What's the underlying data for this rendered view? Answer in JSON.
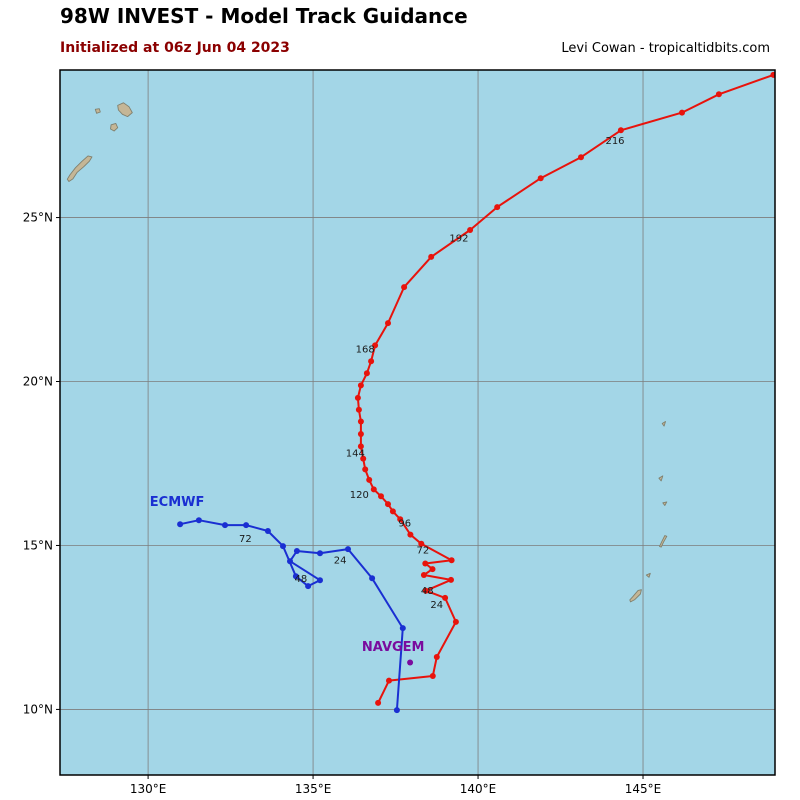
{
  "header": {
    "title": "98W INVEST - Model Track Guidance",
    "subtitle": "Initialized at 06z Jun 04 2023",
    "credit": "Levi Cowan - tropicaltidbits.com"
  },
  "chart_data": {
    "type": "scatter",
    "subtype": "tropical-model-track-map",
    "projection": {
      "lon_min": 127.33,
      "lon_max": 149.0,
      "lat_min": 8.0,
      "lat_max": 29.5
    },
    "x_ticks": [
      {
        "label": "130°E",
        "lon": 130
      },
      {
        "label": "135°E",
        "lon": 135
      },
      {
        "label": "140°E",
        "lon": 140
      },
      {
        "label": "145°E",
        "lon": 145
      }
    ],
    "y_ticks": [
      {
        "label": "25°N",
        "lat": 25
      },
      {
        "label": "20°N",
        "lat": 20
      },
      {
        "label": "15°N",
        "lat": 15
      },
      {
        "label": "10°N",
        "lat": 10
      }
    ],
    "colors": {
      "ocean": "#a3d6e7",
      "land": "#c5b696",
      "land_border": "#80806e",
      "grid": "#7d7d7d",
      "border": "#000000",
      "red_track": "#e8130c",
      "ecmwf": "#1a2fd2",
      "navgem": "#7a0b9e",
      "hour_label": "#1a1a1a",
      "subtitle": "#8b0000"
    },
    "tracks": [
      {
        "id": "model-red",
        "color_key": "red_track",
        "points": [
          [
            136.97,
            10.2
          ],
          [
            137.3,
            10.88
          ],
          [
            138.63,
            11.02
          ],
          [
            138.75,
            11.6
          ],
          [
            139.33,
            12.67
          ],
          [
            139.0,
            13.4
          ],
          [
            138.42,
            13.62
          ],
          [
            139.18,
            13.95
          ],
          [
            138.36,
            14.1
          ],
          [
            138.62,
            14.28
          ],
          [
            138.4,
            14.45
          ],
          [
            139.2,
            14.55
          ],
          [
            138.28,
            15.05
          ],
          [
            137.95,
            15.33
          ],
          [
            137.64,
            15.8
          ],
          [
            137.42,
            16.04
          ],
          [
            137.27,
            16.26
          ],
          [
            137.06,
            16.5
          ],
          [
            136.84,
            16.71
          ],
          [
            136.7,
            17.0
          ],
          [
            136.58,
            17.32
          ],
          [
            136.52,
            17.65
          ],
          [
            136.45,
            18.02
          ],
          [
            136.45,
            18.4
          ],
          [
            136.45,
            18.78
          ],
          [
            136.39,
            19.14
          ],
          [
            136.36,
            19.5
          ],
          [
            136.45,
            19.88
          ],
          [
            136.63,
            20.25
          ],
          [
            136.76,
            20.62
          ],
          [
            136.88,
            21.1
          ],
          [
            137.27,
            21.78
          ],
          [
            137.76,
            22.88
          ],
          [
            138.58,
            23.8
          ],
          [
            139.76,
            24.62
          ],
          [
            140.58,
            25.32
          ],
          [
            141.9,
            26.2
          ],
          [
            143.12,
            26.84
          ],
          [
            144.33,
            27.66
          ],
          [
            146.18,
            28.2
          ],
          [
            147.3,
            28.76
          ],
          [
            148.95,
            29.35
          ]
        ],
        "hour_labels": [
          {
            "text": "24",
            "lon": 138.75,
            "lat": 13.1
          },
          {
            "text": "48",
            "lon": 138.46,
            "lat": 13.52
          },
          {
            "text": "72",
            "lon": 138.33,
            "lat": 14.75
          },
          {
            "text": "96",
            "lon": 137.78,
            "lat": 15.58
          },
          {
            "text": "120",
            "lon": 136.4,
            "lat": 16.45
          },
          {
            "text": "144",
            "lon": 136.28,
            "lat": 17.72
          },
          {
            "text": "168",
            "lon": 136.58,
            "lat": 20.88
          },
          {
            "text": "192",
            "lon": 139.42,
            "lat": 24.27
          },
          {
            "text": "216",
            "lon": 144.15,
            "lat": 27.24
          }
        ]
      },
      {
        "id": "ecmwf",
        "label": "ECMWF",
        "label_pos": [
          130.88,
          16.2
        ],
        "color_key": "ecmwf",
        "points": [
          [
            137.54,
            9.98
          ],
          [
            137.72,
            12.48
          ],
          [
            136.79,
            14.0
          ],
          [
            136.06,
            14.89
          ],
          [
            135.21,
            14.76
          ],
          [
            134.51,
            14.83
          ],
          [
            134.3,
            14.52
          ],
          [
            135.21,
            13.94
          ],
          [
            134.85,
            13.76
          ],
          [
            134.48,
            14.06
          ],
          [
            134.09,
            14.98
          ],
          [
            133.63,
            15.44
          ],
          [
            132.97,
            15.62
          ],
          [
            132.33,
            15.62
          ],
          [
            131.54,
            15.77
          ],
          [
            130.97,
            15.65
          ]
        ],
        "hour_labels": [
          {
            "text": "24",
            "lon": 135.82,
            "lat": 14.45
          },
          {
            "text": "48",
            "lon": 134.63,
            "lat": 13.88
          },
          {
            "text": "72",
            "lon": 132.95,
            "lat": 15.1
          }
        ]
      },
      {
        "id": "navgem",
        "label": "NAVGEM",
        "label_pos": [
          137.43,
          11.78
        ],
        "color_key": "navgem",
        "points": [
          [
            137.94,
            11.43
          ]
        ],
        "hour_labels": []
      }
    ],
    "land": [
      {
        "id": "island-1",
        "points": [
          [
            129.08,
            28.42
          ],
          [
            129.25,
            28.5
          ],
          [
            129.42,
            28.38
          ],
          [
            129.52,
            28.2
          ],
          [
            129.38,
            28.08
          ],
          [
            129.22,
            28.15
          ],
          [
            129.1,
            28.28
          ]
        ]
      },
      {
        "id": "island-2",
        "points": [
          [
            128.4,
            28.3
          ],
          [
            128.52,
            28.32
          ],
          [
            128.55,
            28.22
          ],
          [
            128.44,
            28.18
          ]
        ]
      },
      {
        "id": "island-3",
        "points": [
          [
            128.88,
            27.83
          ],
          [
            129.02,
            27.87
          ],
          [
            129.08,
            27.74
          ],
          [
            128.97,
            27.64
          ],
          [
            128.86,
            27.7
          ]
        ]
      },
      {
        "id": "island-4",
        "points": [
          [
            127.6,
            26.1
          ],
          [
            127.72,
            26.18
          ],
          [
            127.85,
            26.38
          ],
          [
            128.05,
            26.55
          ],
          [
            128.22,
            26.72
          ],
          [
            128.3,
            26.85
          ],
          [
            128.18,
            26.88
          ],
          [
            128.0,
            26.72
          ],
          [
            127.8,
            26.52
          ],
          [
            127.63,
            26.3
          ],
          [
            127.55,
            26.17
          ]
        ]
      },
      {
        "id": "island-5",
        "points": [
          [
            144.62,
            13.28
          ],
          [
            144.75,
            13.35
          ],
          [
            144.92,
            13.52
          ],
          [
            144.95,
            13.65
          ],
          [
            144.85,
            13.63
          ],
          [
            144.7,
            13.45
          ],
          [
            144.6,
            13.34
          ]
        ]
      },
      {
        "id": "island-6",
        "points": [
          [
            145.1,
            14.1
          ],
          [
            145.22,
            14.15
          ],
          [
            145.18,
            14.03
          ]
        ]
      },
      {
        "id": "island-7",
        "points": [
          [
            145.55,
            14.95
          ],
          [
            145.62,
            15.1
          ],
          [
            145.72,
            15.28
          ],
          [
            145.66,
            15.3
          ],
          [
            145.56,
            15.1
          ],
          [
            145.5,
            14.97
          ]
        ]
      },
      {
        "id": "island-8",
        "points": [
          [
            145.6,
            16.3
          ],
          [
            145.72,
            16.33
          ],
          [
            145.66,
            16.22
          ]
        ]
      },
      {
        "id": "island-9",
        "points": [
          [
            145.48,
            17.05
          ],
          [
            145.6,
            17.12
          ],
          [
            145.55,
            16.97
          ]
        ]
      },
      {
        "id": "island-10",
        "points": [
          [
            145.58,
            18.72
          ],
          [
            145.68,
            18.78
          ],
          [
            145.64,
            18.64
          ]
        ]
      }
    ],
    "style": {
      "grid_on": true,
      "marker_radius": 3,
      "line_width": 2
    }
  }
}
